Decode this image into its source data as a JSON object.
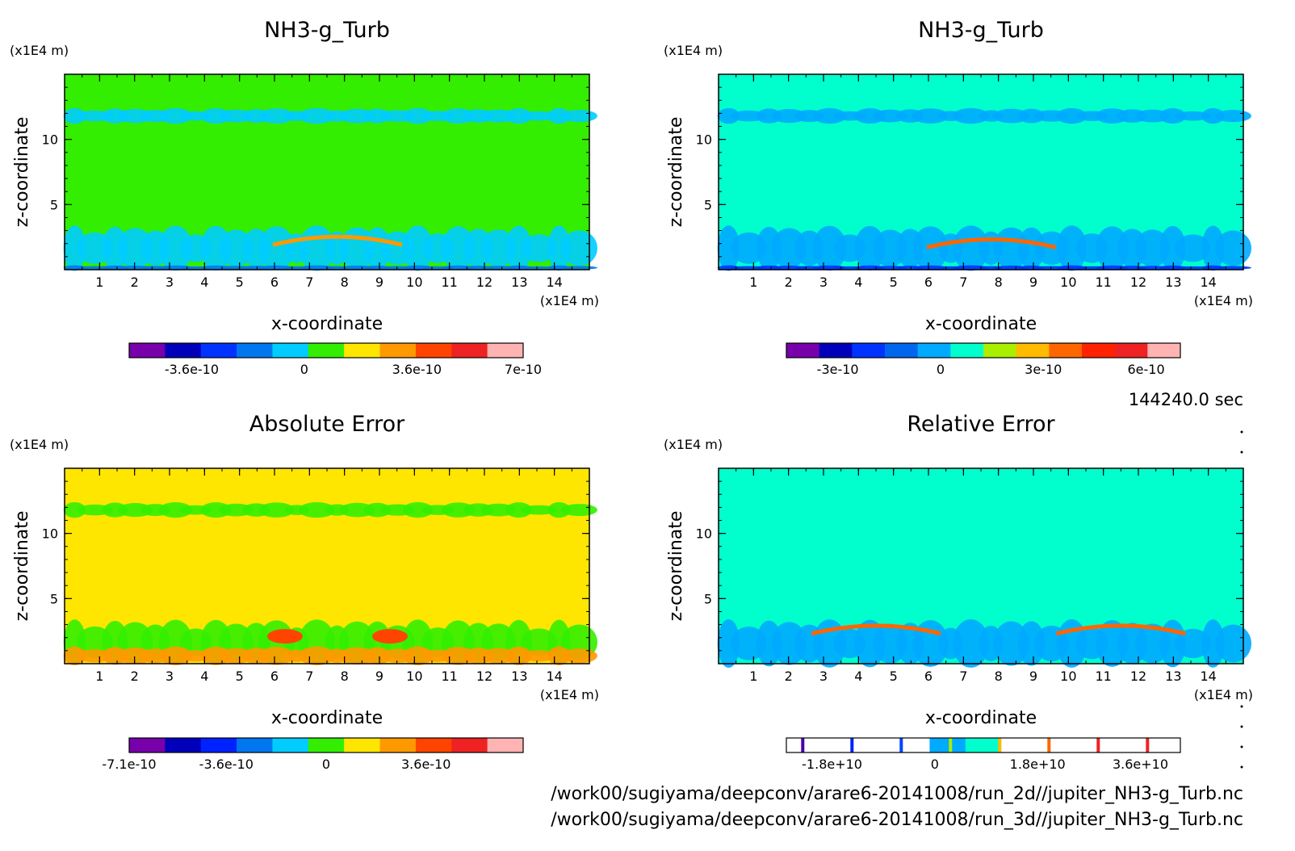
{
  "chart_data": [
    {
      "type": "heatmap",
      "panel": "top-left",
      "title": "NH3-g_Turb",
      "xlabel": "x-coordinate",
      "ylabel": "z-coordinate",
      "xunit": "(x1E4 m)",
      "yunit": "(x1E4 m)",
      "xlim": [
        0,
        15
      ],
      "ylim": [
        0,
        15
      ],
      "x_ticks": [
        "1",
        "2",
        "3",
        "4",
        "5",
        "6",
        "7",
        "8",
        "9",
        "10",
        "11",
        "12",
        "13",
        "14"
      ],
      "y_ticks": [
        "5",
        "10"
      ],
      "background": "#33ee00",
      "colorbar": {
        "range": [
          -5.6e-10,
          7e-10
        ],
        "colors": [
          "#7700aa",
          "#0000bb",
          "#0033ff",
          "#0077ee",
          "#00ccff",
          "#33ee00",
          "#ffe600",
          "#ff9900",
          "#ff4400",
          "#ee2222",
          "#ffb3b3"
        ],
        "tick_values": [
          -3.6e-10,
          0,
          3.6e-10,
          7e-10
        ],
        "tick_labels": [
          "-3.6e-10",
          "0",
          "3.6e-10",
          "7e-10"
        ]
      },
      "features": [
        {
          "z": [
            11.3,
            12.3
          ],
          "kind": "band",
          "color": "#00ccff"
        },
        {
          "z": [
            0.2,
            3.1
          ],
          "kind": "band",
          "color": "#00ccff"
        },
        {
          "z": [
            0,
            0.3
          ],
          "kind": "band",
          "color": "#0077ee"
        },
        {
          "x": 7.8,
          "z": 2.4,
          "kind": "arc",
          "color": "#ff9900"
        }
      ]
    },
    {
      "type": "heatmap",
      "panel": "top-right",
      "title": "NH3-g_Turb",
      "xlabel": "x-coordinate",
      "ylabel": "z-coordinate",
      "xunit": "(x1E4 m)",
      "yunit": "(x1E4 m)",
      "xlim": [
        0,
        15
      ],
      "ylim": [
        0,
        15
      ],
      "x_ticks": [
        "1",
        "2",
        "3",
        "4",
        "5",
        "6",
        "7",
        "8",
        "9",
        "10",
        "11",
        "12",
        "13",
        "14"
      ],
      "y_ticks": [
        "5",
        "10"
      ],
      "background": "#00ffcc",
      "colorbar": {
        "range": [
          -4.5e-10,
          7e-10
        ],
        "colors": [
          "#7700aa",
          "#0000bb",
          "#0033ff",
          "#0066ee",
          "#00aaff",
          "#00ffcc",
          "#aaee00",
          "#ffbb00",
          "#ff6600",
          "#ff2200",
          "#ee2222",
          "#ffb3b3"
        ],
        "tick_values": [
          -3e-10,
          0,
          3e-10,
          6e-10
        ],
        "tick_labels": [
          "-3e-10",
          "0",
          "3e-10",
          "6e-10"
        ]
      },
      "features": [
        {
          "z": [
            11.3,
            12.3
          ],
          "kind": "band",
          "color": "#00aaff"
        },
        {
          "z": [
            0.2,
            3.1
          ],
          "kind": "band",
          "color": "#00aaff"
        },
        {
          "z": [
            0,
            0.3
          ],
          "kind": "band",
          "color": "#0033ff"
        },
        {
          "x": 7.8,
          "z": 2.2,
          "kind": "arc",
          "color": "#ff6600"
        }
      ]
    },
    {
      "type": "heatmap",
      "panel": "bottom-left",
      "title": "Absolute Error",
      "xlabel": "x-coordinate",
      "ylabel": "z-coordinate",
      "xunit": "(x1E4 m)",
      "yunit": "(x1E4 m)",
      "xlim": [
        0,
        15
      ],
      "ylim": [
        0,
        15
      ],
      "x_ticks": [
        "1",
        "2",
        "3",
        "4",
        "5",
        "6",
        "7",
        "8",
        "9",
        "10",
        "11",
        "12",
        "13",
        "14"
      ],
      "y_ticks": [
        "5",
        "10"
      ],
      "background": "#ffe600",
      "colorbar": {
        "range": [
          -7.1e-10,
          7.1e-10
        ],
        "colors": [
          "#7700aa",
          "#0000bb",
          "#0022ff",
          "#0077ee",
          "#00ccff",
          "#33ee00",
          "#ffe600",
          "#ff9900",
          "#ff4400",
          "#ee2222",
          "#ffb3b3"
        ],
        "tick_values": [
          -7.1e-10,
          -3.6e-10,
          0,
          3.6e-10
        ],
        "tick_labels": [
          "-7.1e-10",
          "-3.6e-10",
          "0",
          "3.6e-10"
        ]
      },
      "features": [
        {
          "z": [
            11.3,
            12.3
          ],
          "kind": "band",
          "color": "#33ee00"
        },
        {
          "z": [
            0.2,
            3.1
          ],
          "kind": "band",
          "color": "#33ee00"
        },
        {
          "z": [
            0,
            1.2
          ],
          "kind": "band",
          "color": "#ff9900"
        },
        {
          "x": 6.3,
          "z": 2.1,
          "kind": "blob",
          "color": "#ff4400"
        },
        {
          "x": 9.3,
          "z": 2.1,
          "kind": "blob",
          "color": "#ff4400"
        }
      ]
    },
    {
      "type": "heatmap",
      "panel": "bottom-right",
      "title": "Relative Error",
      "xlabel": "x-coordinate",
      "ylabel": "z-coordinate",
      "xunit": "(x1E4 m)",
      "yunit": "(x1E4 m)",
      "xlim": [
        0,
        15
      ],
      "ylim": [
        0,
        15
      ],
      "x_ticks": [
        "1",
        "2",
        "3",
        "4",
        "5",
        "6",
        "7",
        "8",
        "9",
        "10",
        "11",
        "12",
        "13",
        "14"
      ],
      "y_ticks": [
        "5",
        "10"
      ],
      "background": "#00ffcc",
      "colorbar": {
        "range": [
          -26000000000.0,
          43000000000.0
        ],
        "colors": [
          "#ffffff",
          "#ffffff",
          "#ffffff",
          "#ffffff",
          "#00aaff",
          "#00ffcc",
          "#ffffff",
          "#ffffff",
          "#ffffff",
          "#ffffff",
          "#ffffff"
        ],
        "marker_colors": [
          "#4400aa",
          "#0022ff",
          "#0044ff",
          "#aaee00",
          "#ffbb00",
          "#ff6600",
          "#ee2222",
          "#ee2222"
        ],
        "tick_values": [
          -18000000000.0,
          0,
          18000000000.0,
          36000000000.0
        ],
        "tick_labels": [
          "-1.8e+10",
          "0",
          "1.8e+10",
          "3.6e+10"
        ]
      },
      "features": [
        {
          "z": [
            0,
            3.1
          ],
          "kind": "band",
          "color": "#00aaff"
        },
        {
          "x": 4.5,
          "z": 2.8,
          "kind": "arc",
          "color": "#ff6600"
        },
        {
          "x": 11.5,
          "z": 2.8,
          "kind": "arc",
          "color": "#ff6600"
        }
      ]
    }
  ],
  "time_label": "144240.0 sec",
  "file_paths": [
    "/work00/sugiyama/deepconv/arare6-20141008/run_2d//jupiter_NH3-g_Turb.nc",
    "/work00/sugiyama/deepconv/arare6-20141008/run_3d//jupiter_NH3-g_Turb.nc"
  ]
}
